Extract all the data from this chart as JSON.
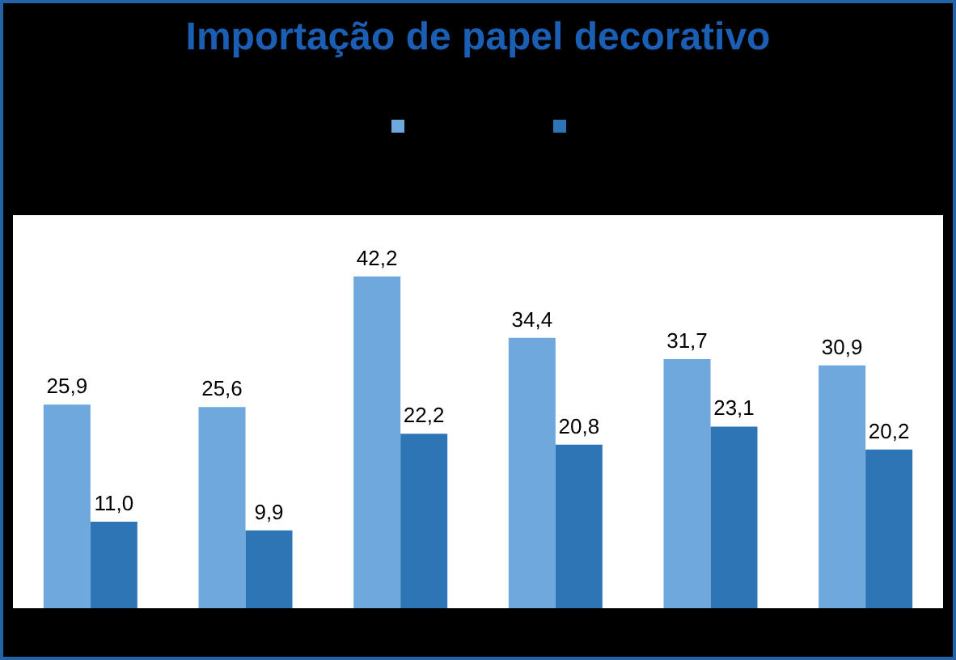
{
  "chart_data": {
    "type": "bar",
    "title": "Importação de papel decorativo",
    "categories": [
      null,
      null,
      null,
      null,
      null,
      null
    ],
    "series": [
      {
        "color": "#6fa8dc",
        "values": [
          25.9,
          25.6,
          42.2,
          34.4,
          31.7,
          30.9
        ],
        "value_labels": [
          "25,9",
          "25,6",
          "42,2",
          "34,4",
          "31,7",
          "30,9"
        ]
      },
      {
        "color": "#2e75b6",
        "values": [
          11.0,
          9.9,
          22.2,
          20.8,
          23.1,
          20.2
        ],
        "value_labels": [
          "11,0",
          "9,9",
          "22,2",
          "20,8",
          "23,1",
          "20,2"
        ]
      }
    ]
  }
}
